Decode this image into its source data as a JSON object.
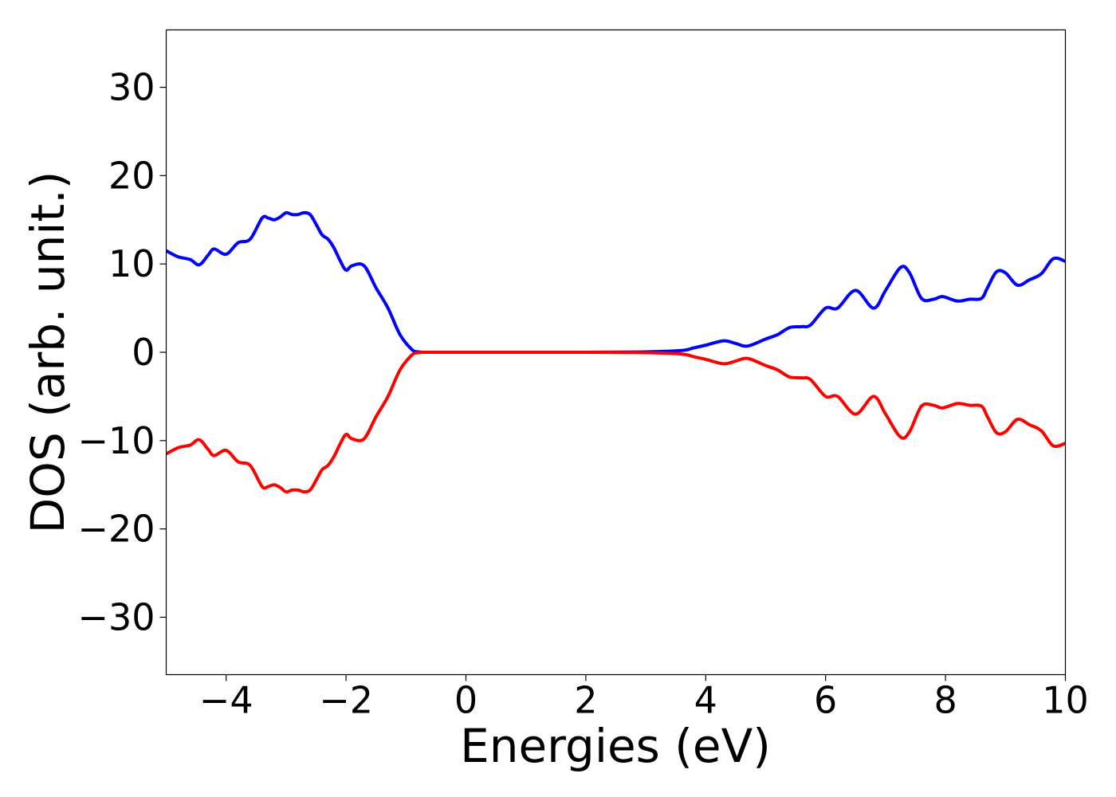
{
  "chart_data": {
    "type": "line",
    "title": "",
    "xlabel": "Energies (eV)",
    "ylabel": "DOS (arb. unit.)",
    "xlim": [
      -5,
      10
    ],
    "ylim": [
      -36.5,
      36.5
    ],
    "x_ticks": [
      -4,
      -2,
      0,
      2,
      4,
      6,
      8,
      10
    ],
    "y_ticks": [
      -30,
      -20,
      -10,
      0,
      10,
      20,
      30
    ],
    "x_tick_labels": [
      "−4",
      "−2",
      "0",
      "2",
      "4",
      "6",
      "8",
      "10"
    ],
    "y_tick_labels": [
      "−30",
      "−20",
      "−10",
      "0",
      "10",
      "20",
      "30"
    ],
    "grid": false,
    "legend": "none",
    "series": [
      {
        "color": "#0000ff",
        "x": [
          -5.0,
          -4.8,
          -4.6,
          -4.45,
          -4.3,
          -4.2,
          -4.0,
          -3.8,
          -3.6,
          -3.4,
          -3.3,
          -3.2,
          -3.1,
          -3.0,
          -2.9,
          -2.8,
          -2.7,
          -2.6,
          -2.5,
          -2.4,
          -2.3,
          -2.2,
          -2.1,
          -2.0,
          -1.9,
          -1.7,
          -1.5,
          -1.3,
          -1.1,
          -0.9,
          -0.8,
          -0.7,
          -0.6,
          -0.5,
          0.0,
          2.0,
          3.0,
          3.6,
          3.8,
          4.0,
          4.3,
          4.5,
          4.7,
          5.0,
          5.2,
          5.4,
          5.6,
          5.75,
          6.0,
          6.2,
          6.5,
          6.8,
          7.0,
          7.25,
          7.4,
          7.6,
          7.8,
          7.95,
          8.2,
          8.4,
          8.6,
          8.7,
          8.85,
          9.0,
          9.2,
          9.4,
          9.6,
          9.8,
          10.0
        ],
        "y": [
          11.5,
          10.8,
          10.5,
          9.9,
          11.0,
          11.7,
          11.1,
          12.4,
          12.8,
          15.2,
          15.2,
          15.0,
          15.3,
          15.8,
          15.6,
          15.6,
          15.8,
          15.6,
          14.5,
          13.3,
          12.8,
          11.8,
          10.4,
          9.3,
          9.8,
          9.8,
          7.3,
          5.0,
          2.0,
          0.3,
          0.05,
          0.0,
          0.0,
          0.0,
          0.0,
          0.0,
          0.05,
          0.2,
          0.5,
          0.8,
          1.3,
          1.0,
          0.7,
          1.5,
          2.0,
          2.8,
          2.9,
          3.1,
          5.0,
          5.0,
          7.0,
          5.0,
          7.0,
          9.6,
          9.0,
          6.1,
          6.0,
          6.3,
          5.8,
          6.0,
          6.1,
          7.3,
          9.1,
          9.0,
          7.6,
          8.2,
          8.9,
          10.6,
          10.3
        ]
      },
      {
        "color": "#ff0000",
        "x": [
          -5.0,
          -4.8,
          -4.6,
          -4.45,
          -4.3,
          -4.2,
          -4.0,
          -3.8,
          -3.6,
          -3.4,
          -3.3,
          -3.2,
          -3.1,
          -3.0,
          -2.9,
          -2.8,
          -2.7,
          -2.6,
          -2.5,
          -2.4,
          -2.3,
          -2.2,
          -2.1,
          -2.0,
          -1.9,
          -1.7,
          -1.5,
          -1.3,
          -1.1,
          -0.9,
          -0.8,
          -0.7,
          -0.6,
          -0.5,
          0.0,
          2.0,
          3.0,
          3.6,
          3.8,
          4.0,
          4.3,
          4.5,
          4.7,
          5.0,
          5.2,
          5.4,
          5.6,
          5.75,
          6.0,
          6.2,
          6.5,
          6.8,
          7.0,
          7.25,
          7.4,
          7.6,
          7.8,
          7.95,
          8.2,
          8.4,
          8.6,
          8.7,
          8.85,
          9.0,
          9.2,
          9.4,
          9.6,
          9.8,
          10.0
        ],
        "y": [
          -11.5,
          -10.8,
          -10.5,
          -9.9,
          -11.0,
          -11.7,
          -11.1,
          -12.4,
          -12.8,
          -15.2,
          -15.2,
          -15.0,
          -15.3,
          -15.8,
          -15.6,
          -15.6,
          -15.8,
          -15.6,
          -14.5,
          -13.3,
          -12.8,
          -11.8,
          -10.4,
          -9.3,
          -9.8,
          -9.8,
          -7.3,
          -5.0,
          -2.0,
          -0.3,
          -0.05,
          0.0,
          0.0,
          0.0,
          0.0,
          0.0,
          -0.05,
          -0.2,
          -0.5,
          -0.8,
          -1.3,
          -1.0,
          -0.7,
          -1.5,
          -2.0,
          -2.8,
          -2.9,
          -3.1,
          -5.0,
          -5.0,
          -7.0,
          -5.0,
          -7.0,
          -9.6,
          -9.0,
          -6.1,
          -6.0,
          -6.3,
          -5.8,
          -6.0,
          -6.1,
          -7.3,
          -9.1,
          -9.0,
          -7.6,
          -8.2,
          -8.9,
          -10.6,
          -10.3
        ]
      }
    ]
  }
}
